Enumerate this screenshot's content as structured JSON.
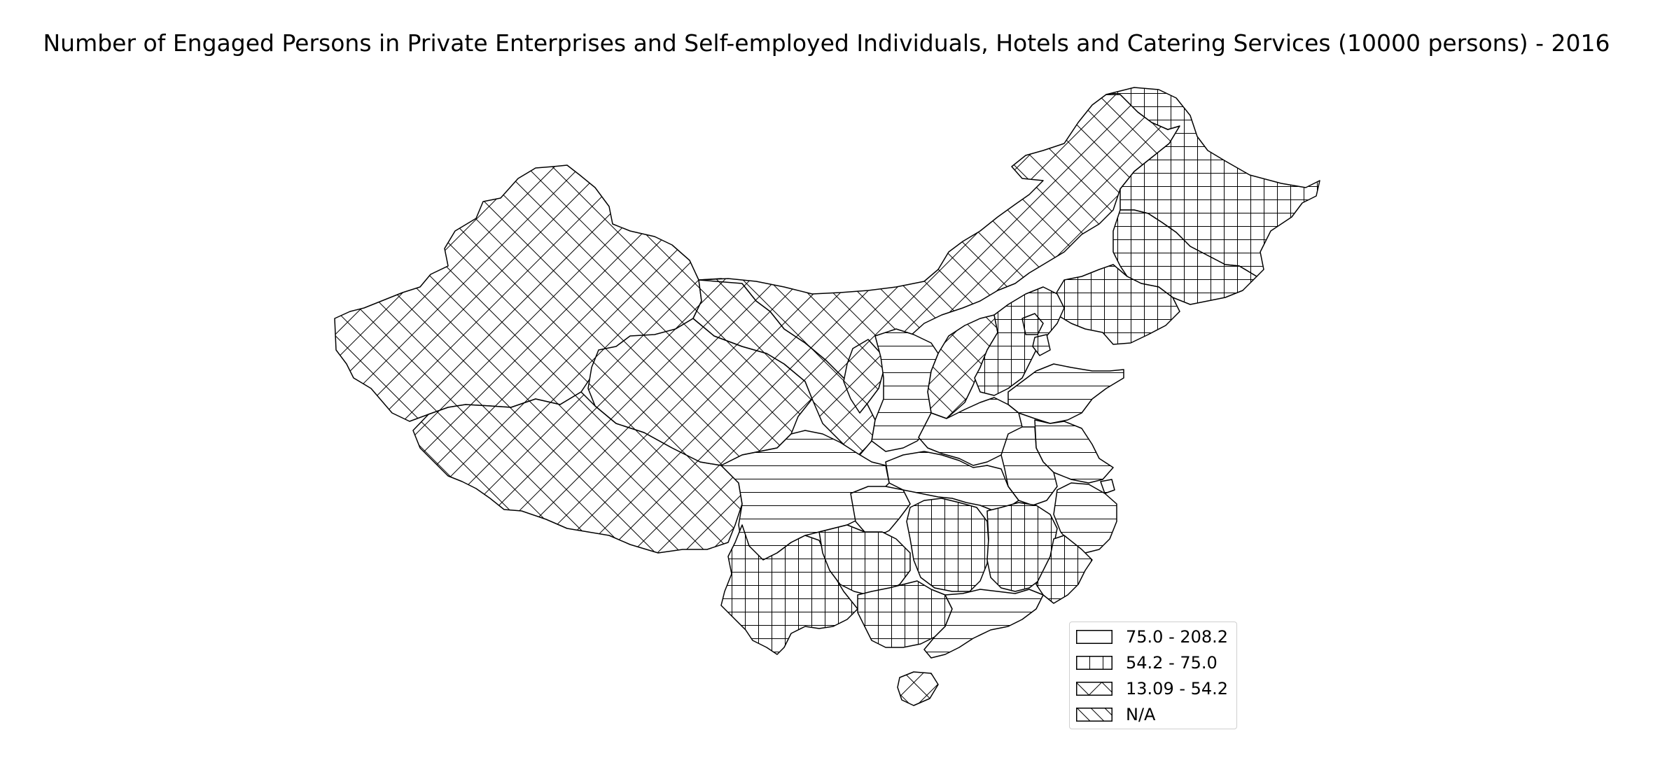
{
  "title": "Number of Engaged Persons in Private Enterprises and Self-employed Individuals, Hotels and Catering Services (10000 persons) - 2016",
  "legend": {
    "items": [
      {
        "label": "75.0 - 208.2",
        "pattern": "horizontal"
      },
      {
        "label": "54.2 - 75.0",
        "pattern": "grid"
      },
      {
        "label": "13.09 - 54.2",
        "pattern": "crosshatch"
      },
      {
        "label": "N/A",
        "pattern": "diagonal"
      }
    ]
  },
  "colors": {
    "stroke": "#000000",
    "background": "#ffffff",
    "legend_border": "#cfcfcf"
  }
}
